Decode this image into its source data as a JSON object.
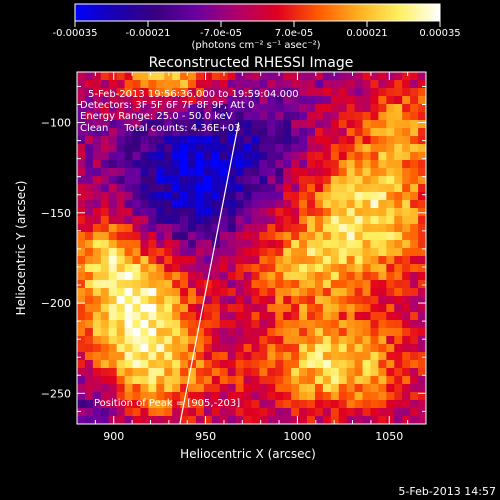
{
  "colorbar": {
    "ticks": [
      "-0.00035",
      "-0.00021",
      "-7.0e-05",
      "7.0e-05",
      "0.00021",
      "0.00035"
    ],
    "unit_label": "(photons cm⁻² s⁻¹ asec⁻²)",
    "range": [
      -0.00035,
      0.00035
    ],
    "colors": [
      "#0000ff",
      "#1a00b0",
      "#3a0080",
      "#6a00a0",
      "#b0006a",
      "#e00020",
      "#ff5a00",
      "#ffb020",
      "#fff060",
      "#ffffff"
    ]
  },
  "chart_data": {
    "type": "heatmap",
    "title": "Reconstructed RHESSI Image",
    "xlabel": "Heliocentric X (arcsec)",
    "ylabel": "Heliocentric Y (arcsec)",
    "xlim": [
      880,
      1070
    ],
    "ylim": [
      -267,
      -72
    ],
    "xticks": [
      900,
      950,
      1000,
      1050
    ],
    "xtick_labels": [
      "900",
      "950",
      "1000",
      "1050"
    ],
    "yticks": [
      -100,
      -150,
      -200,
      -250
    ],
    "ytick_labels": [
      "−100",
      "−150",
      "−200",
      "−250"
    ],
    "annotations": [
      "5-Feb-2013 19:56:36.000 to 19:59:04.000",
      "Detectors: 3F 5F 6F 7F 8F 9F, Att 0",
      "Energy Range: 25.0 - 50.0 keV",
      "Clean     Total counts: 4.36E+03"
    ],
    "peak_label": "Position of Peak = [905,-203]",
    "peak": [
      905,
      -203
    ],
    "limb_line": [
      [
        936,
        -267
      ],
      [
        968,
        -100
      ]
    ],
    "bright_regions": [
      {
        "x": 912,
        "y": -200,
        "level": 1.0,
        "sx": 22,
        "sy": 20
      },
      {
        "x": 918,
        "y": -240,
        "level": 0.75,
        "sx": 25,
        "sy": 18
      },
      {
        "x": 895,
        "y": -170,
        "level": 0.6,
        "sx": 15,
        "sy": 15
      },
      {
        "x": 1040,
        "y": -150,
        "level": 0.9,
        "sx": 25,
        "sy": 30
      },
      {
        "x": 1020,
        "y": -235,
        "level": 0.85,
        "sx": 30,
        "sy": 18
      },
      {
        "x": 1000,
        "y": -180,
        "level": 0.6,
        "sx": 20,
        "sy": 20
      },
      {
        "x": 930,
        "y": -75,
        "level": 0.8,
        "sx": 20,
        "sy": 10
      },
      {
        "x": 1060,
        "y": -100,
        "level": 0.5,
        "sx": 15,
        "sy": 15
      }
    ],
    "dim_regions": [
      {
        "x": 945,
        "y": -130,
        "level": -0.8,
        "sx": 25,
        "sy": 25
      },
      {
        "x": 890,
        "y": -255,
        "level": -0.4,
        "sx": 15,
        "sy": 15
      },
      {
        "x": 985,
        "y": -110,
        "level": -0.3,
        "sx": 15,
        "sy": 15
      }
    ]
  },
  "footer": {
    "date": "5-Feb-2013 14:57"
  }
}
